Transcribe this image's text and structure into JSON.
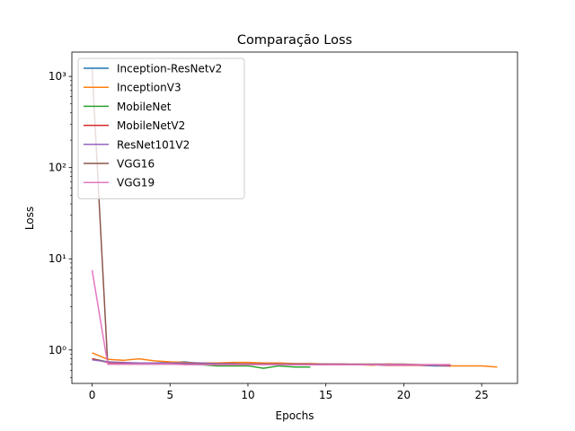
{
  "chart_data": {
    "type": "line",
    "title": "Comparação Loss",
    "xlabel": "Epochs",
    "ylabel": "Loss",
    "yscale": "log",
    "xlim": [
      -1.3,
      27.3
    ],
    "ylim": [
      0.43,
      1850
    ],
    "x_ticks": [
      0,
      5,
      10,
      15,
      20,
      25
    ],
    "y_ticks": [
      {
        "value": 1,
        "label": "10⁰"
      },
      {
        "value": 10,
        "label": "10¹"
      },
      {
        "value": 100,
        "label": "10²"
      },
      {
        "value": 1000,
        "label": "10³"
      }
    ],
    "grid": false,
    "legend_position": "upper-left",
    "series": [
      {
        "name": "Inception-ResNetv2",
        "color": "#1f77b4",
        "x": [
          0,
          1,
          2,
          3,
          4,
          5,
          6,
          7,
          8,
          9,
          10,
          11,
          12,
          13,
          14,
          15,
          16,
          17,
          18,
          19,
          20,
          21,
          22,
          23
        ],
        "y": [
          0.8,
          0.74,
          0.72,
          0.71,
          0.72,
          0.73,
          0.74,
          0.71,
          0.7,
          0.71,
          0.7,
          0.7,
          0.7,
          0.69,
          0.69,
          0.69,
          0.69,
          0.69,
          0.69,
          0.68,
          0.68,
          0.68,
          0.67,
          0.67
        ]
      },
      {
        "name": "InceptionV3",
        "color": "#ff7f0e",
        "x": [
          0,
          1,
          2,
          3,
          4,
          5,
          6,
          7,
          8,
          9,
          10,
          11,
          12,
          13,
          14,
          15,
          16,
          17,
          18,
          19,
          20,
          21,
          22,
          23,
          24,
          25,
          26
        ],
        "y": [
          0.93,
          0.79,
          0.77,
          0.8,
          0.76,
          0.74,
          0.73,
          0.72,
          0.72,
          0.73,
          0.73,
          0.72,
          0.72,
          0.71,
          0.71,
          0.7,
          0.7,
          0.69,
          0.68,
          0.7,
          0.69,
          0.69,
          0.68,
          0.67,
          0.67,
          0.67,
          0.65
        ]
      },
      {
        "name": "MobileNet",
        "color": "#2ca02c",
        "x": [
          0,
          1,
          2,
          3,
          4,
          5,
          6,
          7,
          8,
          9,
          10,
          11,
          12,
          13,
          14
        ],
        "y": [
          0.8,
          0.74,
          0.72,
          0.71,
          0.71,
          0.71,
          0.7,
          0.69,
          0.67,
          0.67,
          0.67,
          0.63,
          0.67,
          0.65,
          0.65
        ]
      },
      {
        "name": "MobileNetV2",
        "color": "#d62728",
        "x": [
          0,
          1,
          2,
          3,
          4,
          5,
          6,
          7,
          8,
          9,
          10,
          11,
          12,
          13,
          14,
          15,
          16,
          17,
          18,
          19,
          20,
          21,
          22,
          23
        ],
        "y": [
          0.8,
          0.73,
          0.72,
          0.72,
          0.71,
          0.71,
          0.7,
          0.7,
          0.7,
          0.7,
          0.7,
          0.7,
          0.7,
          0.69,
          0.69,
          0.69,
          0.69,
          0.69,
          0.69,
          0.68,
          0.68,
          0.68,
          0.68,
          0.67
        ]
      },
      {
        "name": "ResNet101V2",
        "color": "#9467bd",
        "x": [
          0,
          1,
          2,
          3,
          4,
          5,
          6,
          7,
          8,
          9,
          10,
          11,
          12,
          13,
          14,
          15,
          16,
          17,
          18,
          19,
          20,
          21,
          22,
          23
        ],
        "y": [
          0.78,
          0.74,
          0.73,
          0.72,
          0.72,
          0.72,
          0.72,
          0.72,
          0.71,
          0.71,
          0.7,
          0.7,
          0.7,
          0.7,
          0.7,
          0.7,
          0.7,
          0.69,
          0.69,
          0.69,
          0.69,
          0.69,
          0.68,
          0.68
        ]
      },
      {
        "name": "VGG16",
        "color": "#8c564b",
        "x": [
          0,
          1,
          2,
          3,
          4,
          5,
          6,
          7,
          8,
          9,
          10,
          11,
          12,
          13,
          14,
          15,
          16,
          17,
          18,
          19,
          20,
          21,
          22,
          23
        ],
        "y": [
          1200,
          0.7,
          0.7,
          0.7,
          0.7,
          0.7,
          0.7,
          0.7,
          0.7,
          0.7,
          0.7,
          0.7,
          0.7,
          0.7,
          0.7,
          0.7,
          0.7,
          0.7,
          0.7,
          0.7,
          0.7,
          0.69,
          0.69,
          0.69
        ]
      },
      {
        "name": "VGG19",
        "color": "#e377c2",
        "x": [
          0,
          1,
          2,
          3,
          4,
          5,
          6,
          7,
          8,
          9,
          10,
          11,
          12,
          13,
          14,
          15,
          16,
          17,
          18,
          19,
          20,
          21,
          22,
          23
        ],
        "y": [
          7.5,
          0.7,
          0.7,
          0.7,
          0.7,
          0.7,
          0.69,
          0.69,
          0.69,
          0.69,
          0.69,
          0.69,
          0.69,
          0.69,
          0.69,
          0.69,
          0.69,
          0.69,
          0.69,
          0.69,
          0.69,
          0.69,
          0.69,
          0.69
        ]
      }
    ]
  }
}
